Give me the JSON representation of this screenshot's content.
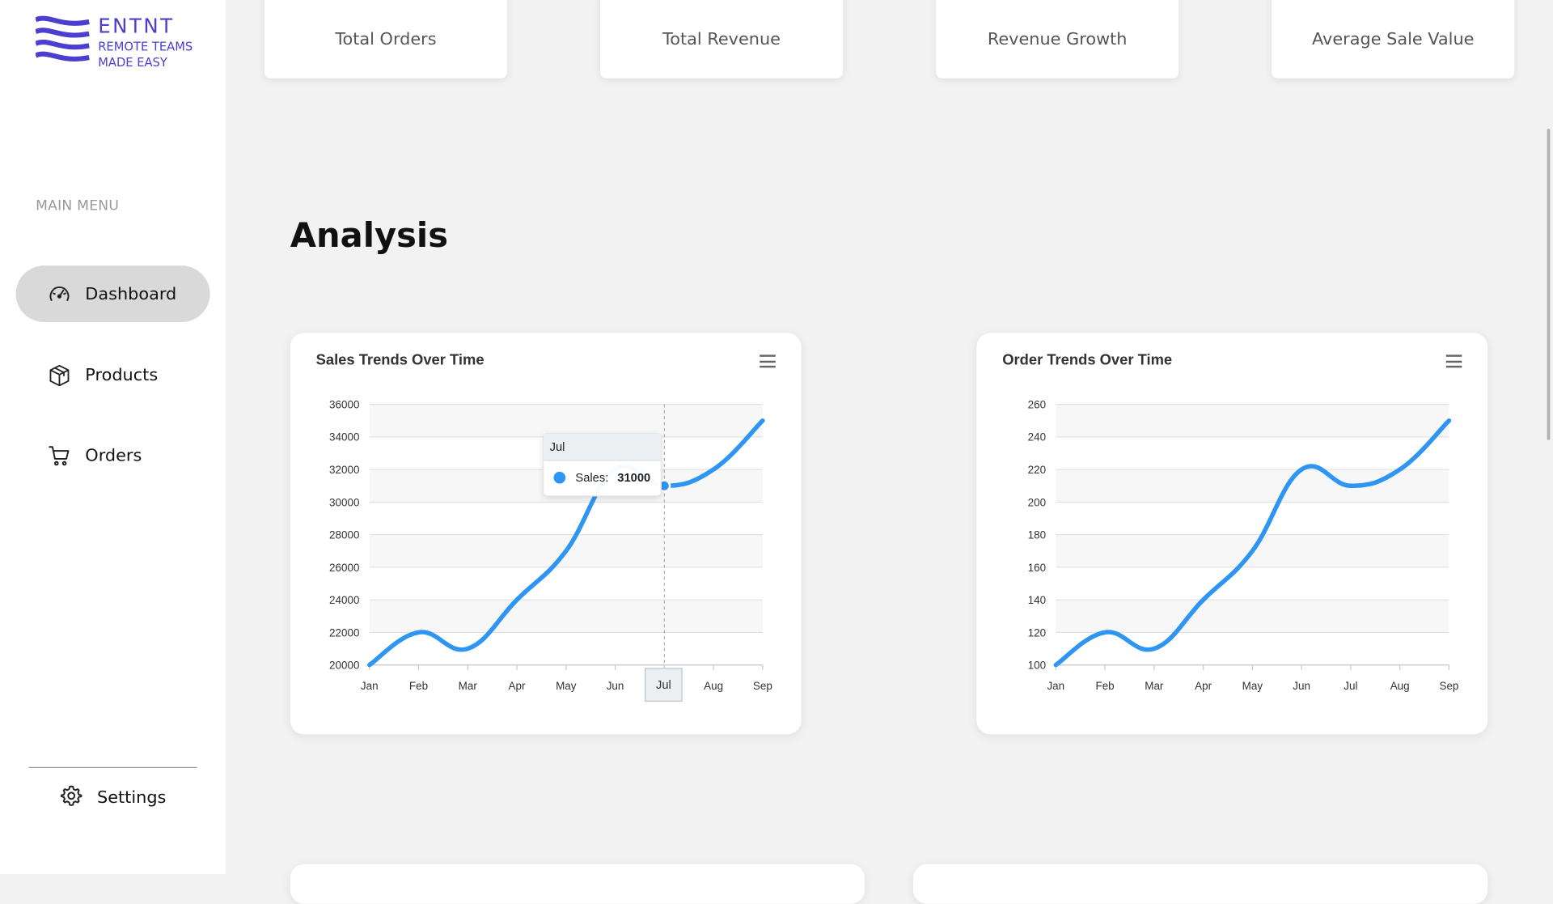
{
  "brand": {
    "name": "ENTNT",
    "tagline": "REMOTE TEAMS\nMADE EASY",
    "color": "#4a3fcf"
  },
  "sidebar": {
    "heading": "MAIN MENU",
    "items": [
      {
        "label": "Dashboard",
        "icon": "speedometer-icon",
        "active": true
      },
      {
        "label": "Products",
        "icon": "box-icon",
        "active": false
      },
      {
        "label": "Orders",
        "icon": "cart-icon",
        "active": false
      }
    ],
    "settings": {
      "label": "Settings",
      "icon": "gear-icon"
    }
  },
  "stats": [
    {
      "label": "Total Orders"
    },
    {
      "label": "Total Revenue"
    },
    {
      "label": "Revenue Growth"
    },
    {
      "label": "Average Sale Value"
    }
  ],
  "section": {
    "title": "Analysis"
  },
  "colors": {
    "series": "#2e96f2",
    "background": "#f2f2f2"
  },
  "tooltip": {
    "header": "Jul",
    "series": "Sales:",
    "value": "31000",
    "xlabel": "Jul"
  },
  "chart_data": [
    {
      "type": "line",
      "title": "Sales Trends Over Time",
      "categories": [
        "Jan",
        "Feb",
        "Mar",
        "Apr",
        "May",
        "Jun",
        "Jul",
        "Aug",
        "Sep"
      ],
      "series": [
        {
          "name": "Sales",
          "values": [
            20000,
            22000,
            21000,
            24000,
            27000,
            32000,
            31000,
            32000,
            35000
          ]
        }
      ],
      "ylim": [
        20000,
        36000
      ],
      "yticks": [
        20000,
        22000,
        24000,
        26000,
        28000,
        30000,
        32000,
        34000,
        36000
      ],
      "grid": true,
      "active_index": 6
    },
    {
      "type": "line",
      "title": "Order Trends Over Time",
      "categories": [
        "Jan",
        "Feb",
        "Mar",
        "Apr",
        "May",
        "Jun",
        "Jul",
        "Aug",
        "Sep"
      ],
      "series": [
        {
          "values": [
            100,
            120,
            110,
            140,
            170,
            220,
            210,
            220,
            250
          ]
        }
      ],
      "ylim": [
        100,
        260
      ],
      "yticks": [
        100,
        120,
        140,
        160,
        180,
        200,
        220,
        240,
        260
      ],
      "grid": true
    }
  ]
}
